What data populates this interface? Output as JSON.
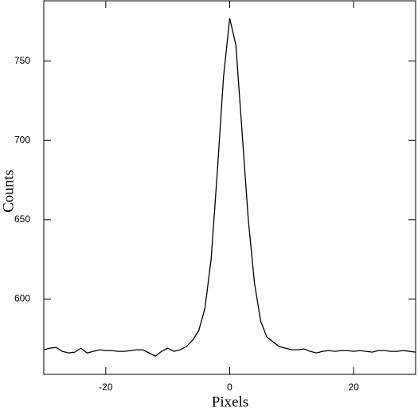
{
  "chart_data": {
    "type": "line",
    "x_label": "Pixels",
    "y_label": "Counts",
    "x": [
      -30,
      -29,
      -28,
      -27,
      -26,
      -25,
      -24,
      -23,
      -22,
      -21,
      -20,
      -19,
      -18,
      -17,
      -16,
      -15,
      -14,
      -13,
      -12,
      -11,
      -10,
      -9,
      -8,
      -7,
      -6,
      -5,
      -4,
      -3,
      -2,
      -1,
      0,
      1,
      2,
      3,
      4,
      5,
      6,
      7,
      8,
      9,
      10,
      11,
      12,
      13,
      14,
      15,
      16,
      17,
      18,
      19,
      20,
      21,
      22,
      23,
      24,
      25,
      26,
      27,
      28,
      29,
      30
    ],
    "values": [
      568,
      569,
      569.5,
      567,
      566,
      566.5,
      569,
      566,
      567,
      568,
      567.5,
      567.5,
      567,
      567,
      567.5,
      568,
      568,
      566,
      564,
      567,
      569,
      567,
      568,
      570,
      574,
      580,
      594,
      625,
      680,
      740,
      777,
      760,
      705,
      650,
      610,
      586,
      576,
      573,
      570,
      569,
      568,
      568,
      568.5,
      567,
      566,
      567,
      567.5,
      567,
      567.5,
      567.5,
      567,
      567.5,
      567,
      566.5,
      567.5,
      567.5,
      567,
      567,
      567.5,
      567,
      566.5
    ],
    "color": "#000000",
    "xlim": [
      -30,
      30
    ],
    "xticks": [
      -20,
      0,
      20
    ],
    "ylim": [
      552.5,
      788
    ],
    "yticks": [
      600,
      650,
      700,
      750
    ]
  }
}
